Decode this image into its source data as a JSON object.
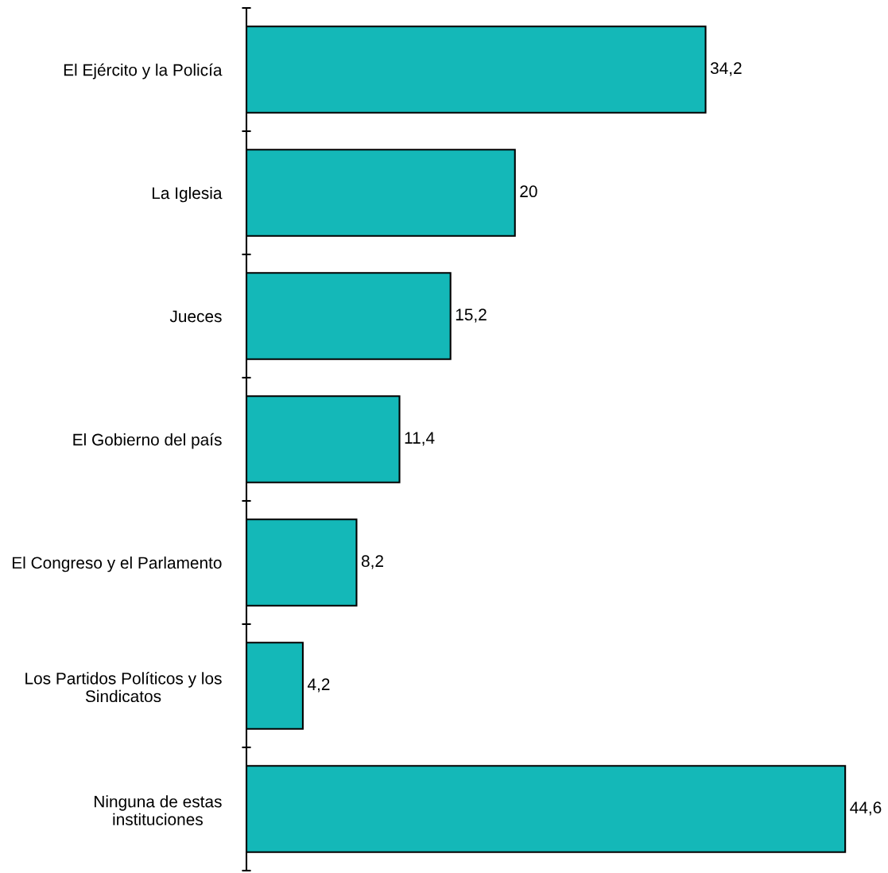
{
  "chart_data": {
    "type": "bar",
    "orientation": "horizontal",
    "categories": [
      "El Ejército y la Policía",
      "La Iglesia",
      "Jueces",
      "El Gobierno del país",
      "El Congreso y el Parlamento",
      "Los Partidos Políticos y los\nSindicatos",
      "Ninguna de estas\ninstituciones"
    ],
    "values": [
      34.2,
      20,
      15.2,
      11.4,
      8.2,
      4.2,
      44.6
    ],
    "value_labels": [
      "34,2",
      "20",
      "15,2",
      "11,4",
      "8,2",
      "4,2",
      "44,6"
    ],
    "color": "#14b8b8",
    "tick_labels": "y"
  }
}
